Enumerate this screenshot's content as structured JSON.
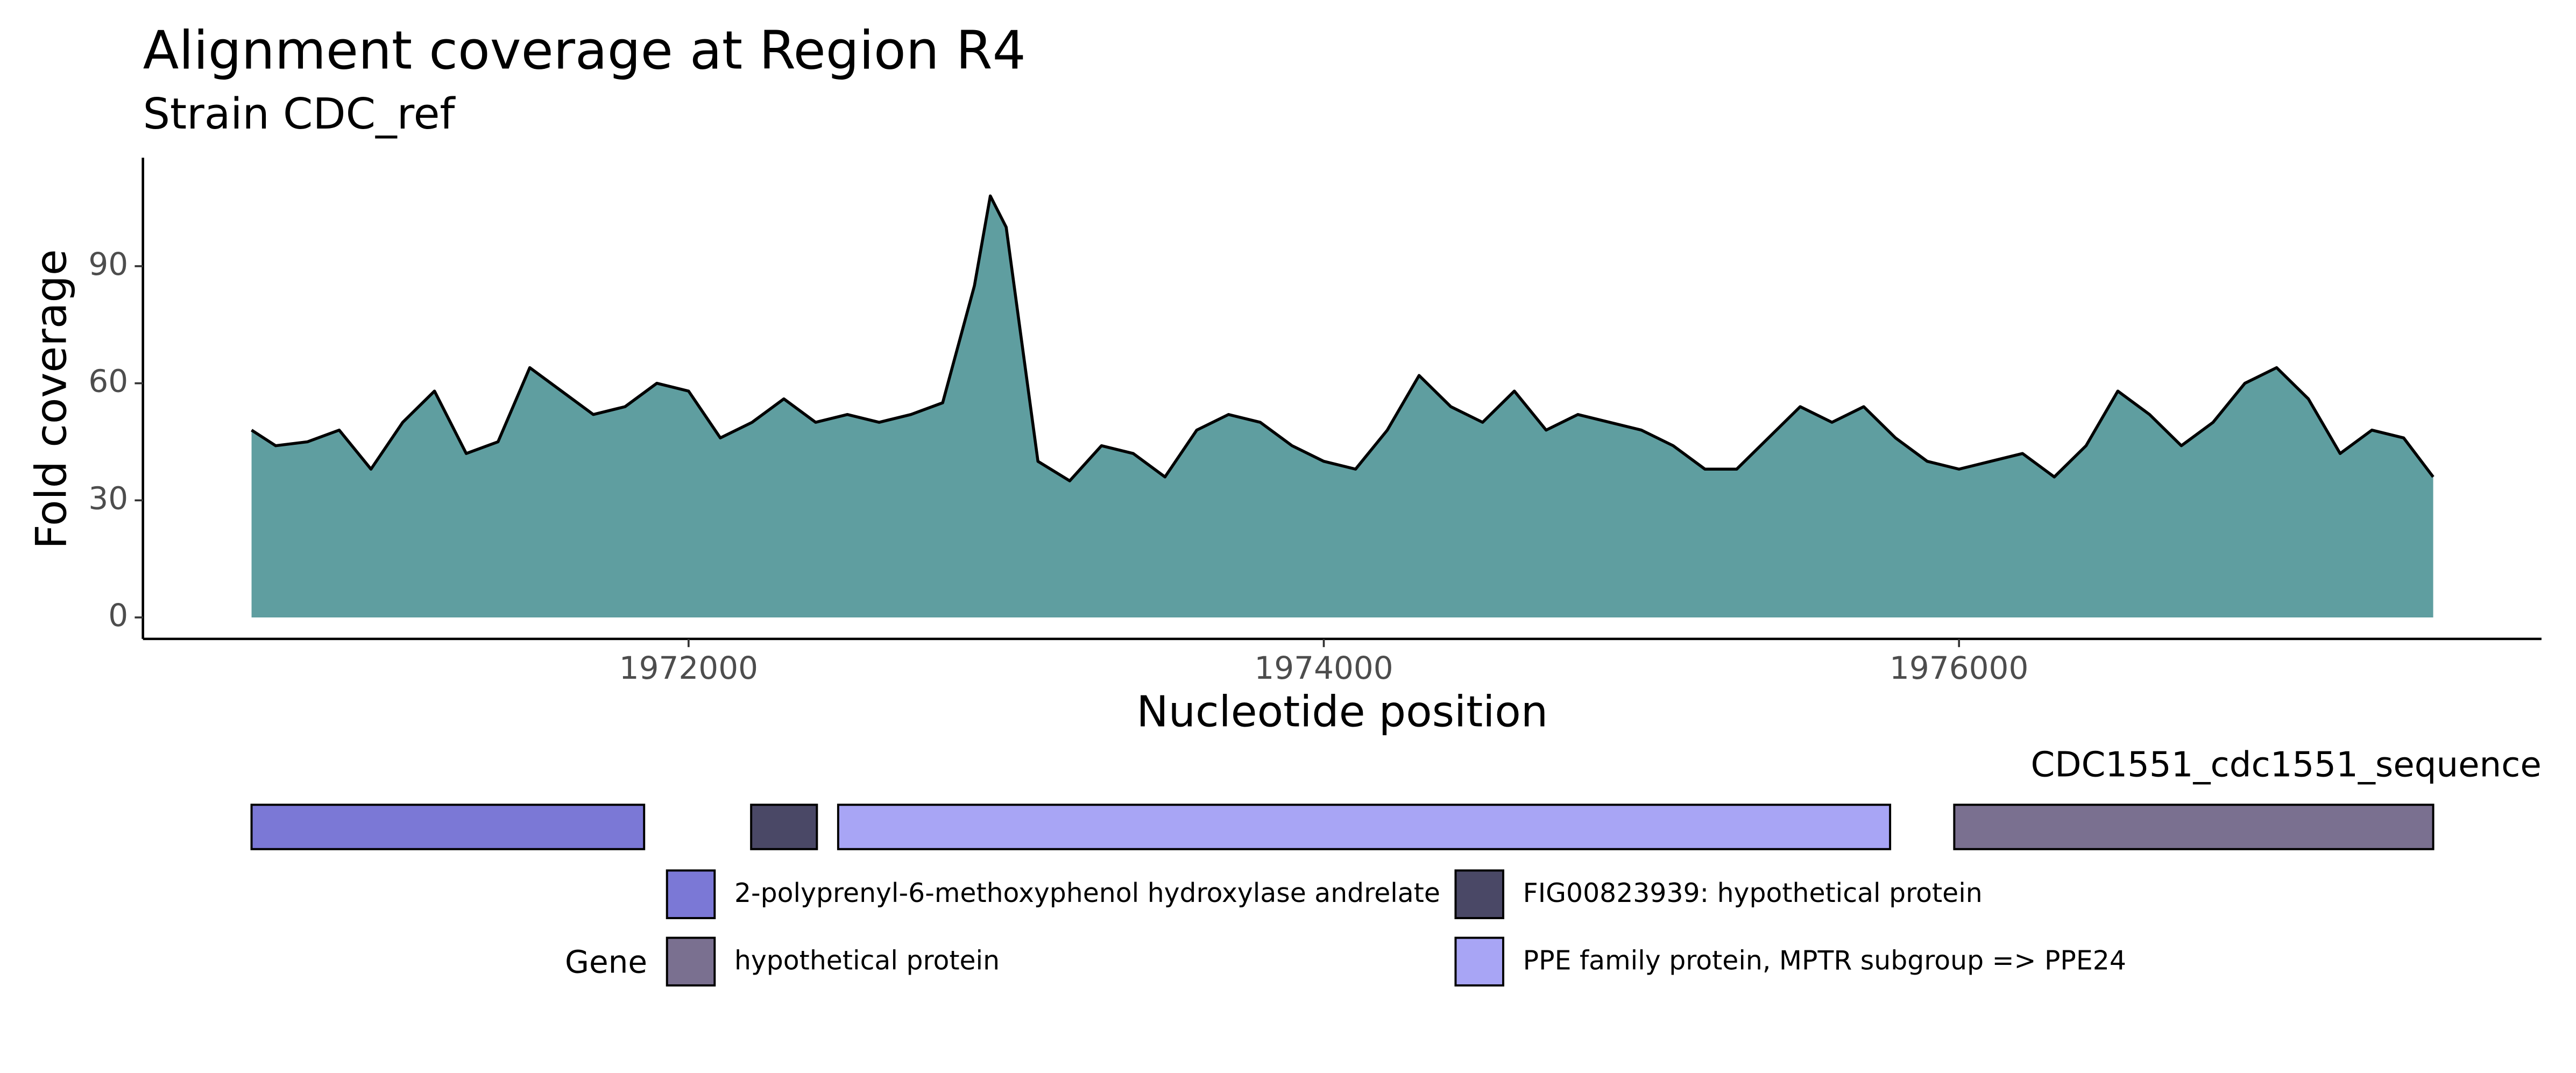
{
  "chart_data": [
    {
      "type": "area",
      "title": "Alignment coverage at Region R4",
      "subtitle": "Strain CDC_ref",
      "x_label": "Nucleotide position",
      "y_label": "Fold coverage",
      "color": "#5f9ea0",
      "line_color": "#000000",
      "x": [
        1970624,
        1970700,
        1970800,
        1970900,
        1971000,
        1971100,
        1971200,
        1971300,
        1971400,
        1971500,
        1971600,
        1971700,
        1971800,
        1971900,
        1972000,
        1972100,
        1972200,
        1972300,
        1972400,
        1972500,
        1972600,
        1972700,
        1972800,
        1972900,
        1972950,
        1973000,
        1973050,
        1973100,
        1973200,
        1973300,
        1973400,
        1973500,
        1973600,
        1973700,
        1973800,
        1973900,
        1974000,
        1974100,
        1974200,
        1974300,
        1974400,
        1974500,
        1974600,
        1974700,
        1974800,
        1974900,
        1975000,
        1975100,
        1975200,
        1975300,
        1975400,
        1975500,
        1975600,
        1975700,
        1975800,
        1975900,
        1976000,
        1976100,
        1976200,
        1976300,
        1976400,
        1976500,
        1976600,
        1976700,
        1976800,
        1976900,
        1977000,
        1977100,
        1977200,
        1977300,
        1977400,
        1977493
      ],
      "values": [
        48,
        44,
        45,
        48,
        38,
        50,
        58,
        42,
        45,
        64,
        58,
        52,
        54,
        60,
        58,
        46,
        50,
        56,
        50,
        52,
        50,
        52,
        55,
        85,
        108,
        100,
        70,
        40,
        35,
        44,
        42,
        36,
        48,
        52,
        50,
        44,
        40,
        38,
        48,
        62,
        54,
        50,
        58,
        48,
        52,
        50,
        48,
        44,
        38,
        38,
        46,
        54,
        50,
        54,
        46,
        40,
        38,
        40,
        42,
        36,
        44,
        58,
        52,
        44,
        50,
        60,
        64,
        56,
        42,
        48,
        46,
        36
      ],
      "xlim": [
        1970282,
        1977834
      ],
      "xticks": [
        1972000,
        1974000,
        1976000
      ],
      "ylim": [
        -5.5,
        117.8
      ],
      "yticks": [
        0,
        30,
        60,
        90
      ]
    },
    {
      "type": "gene-track",
      "title": "CDC1551_cdc1551_sequence",
      "legend_title": "Gene",
      "series": [
        {
          "name": "2-polyprenyl-6-methoxyphenol hydroxylase andrelate",
          "color": "#7b78d6",
          "ranges": [
            [
              1970624,
              1971860
            ]
          ]
        },
        {
          "name": "FIG00823939: hypothetical protein",
          "color": "#4a4866",
          "ranges": [
            [
              1972197,
              1972404
            ]
          ]
        },
        {
          "name": "hypothetical protein",
          "color": "#7a7090",
          "ranges": [
            [
              1975985,
              1977493
            ]
          ]
        },
        {
          "name": "PPE family protein, MPTR subgroup => PPE24",
          "color": "#a8a5f5",
          "ranges": [
            [
              1972471,
              1975783
            ]
          ]
        }
      ]
    }
  ]
}
